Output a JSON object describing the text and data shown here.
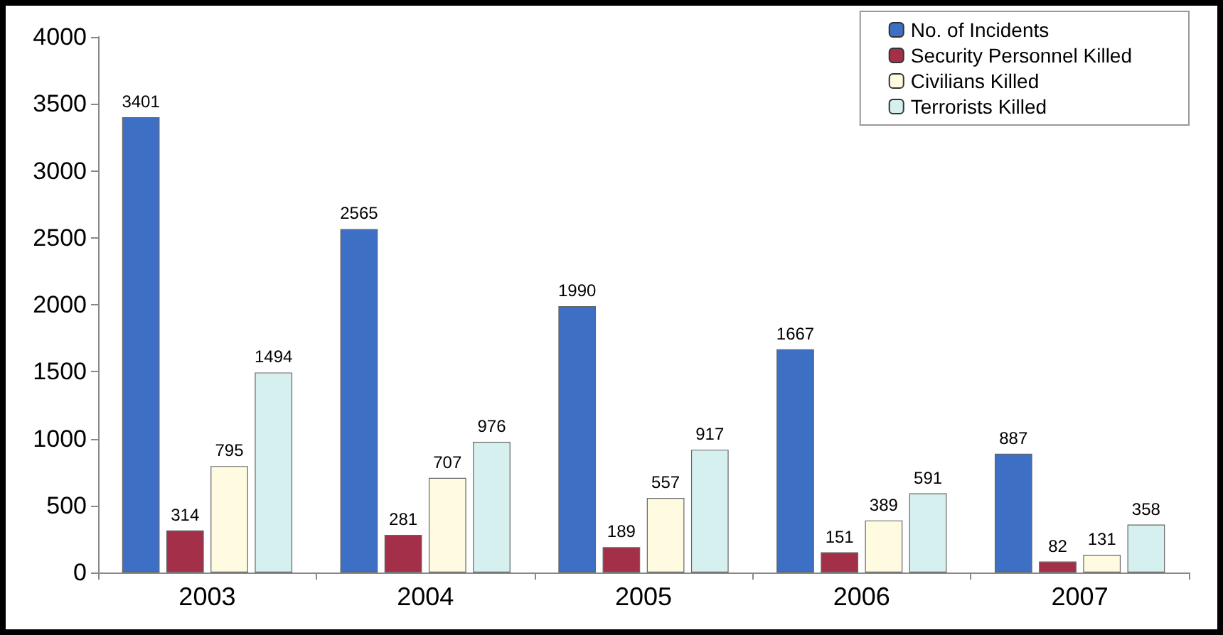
{
  "chart_data": {
    "type": "bar",
    "categories": [
      "2003",
      "2004",
      "2005",
      "2006",
      "2007"
    ],
    "series": [
      {
        "name": "No. of Incidents",
        "color": "#3d6fc4",
        "values": [
          3401,
          2565,
          1990,
          1667,
          887
        ]
      },
      {
        "name": "Security Personnel Killed",
        "color": "#a33048",
        "values": [
          314,
          281,
          189,
          151,
          82
        ]
      },
      {
        "name": "Civilians Killed",
        "color": "#fffbe0",
        "values": [
          795,
          707,
          557,
          389,
          131
        ]
      },
      {
        "name": "Terrorists Killed",
        "color": "#d6f0f0",
        "values": [
          1494,
          976,
          917,
          591,
          358
        ]
      }
    ],
    "ylim": [
      0,
      4000
    ],
    "yticks": [
      0,
      500,
      1000,
      1500,
      2000,
      2500,
      3000,
      3500,
      4000
    ],
    "grid": false,
    "legend": "top right",
    "data_labels": true
  }
}
